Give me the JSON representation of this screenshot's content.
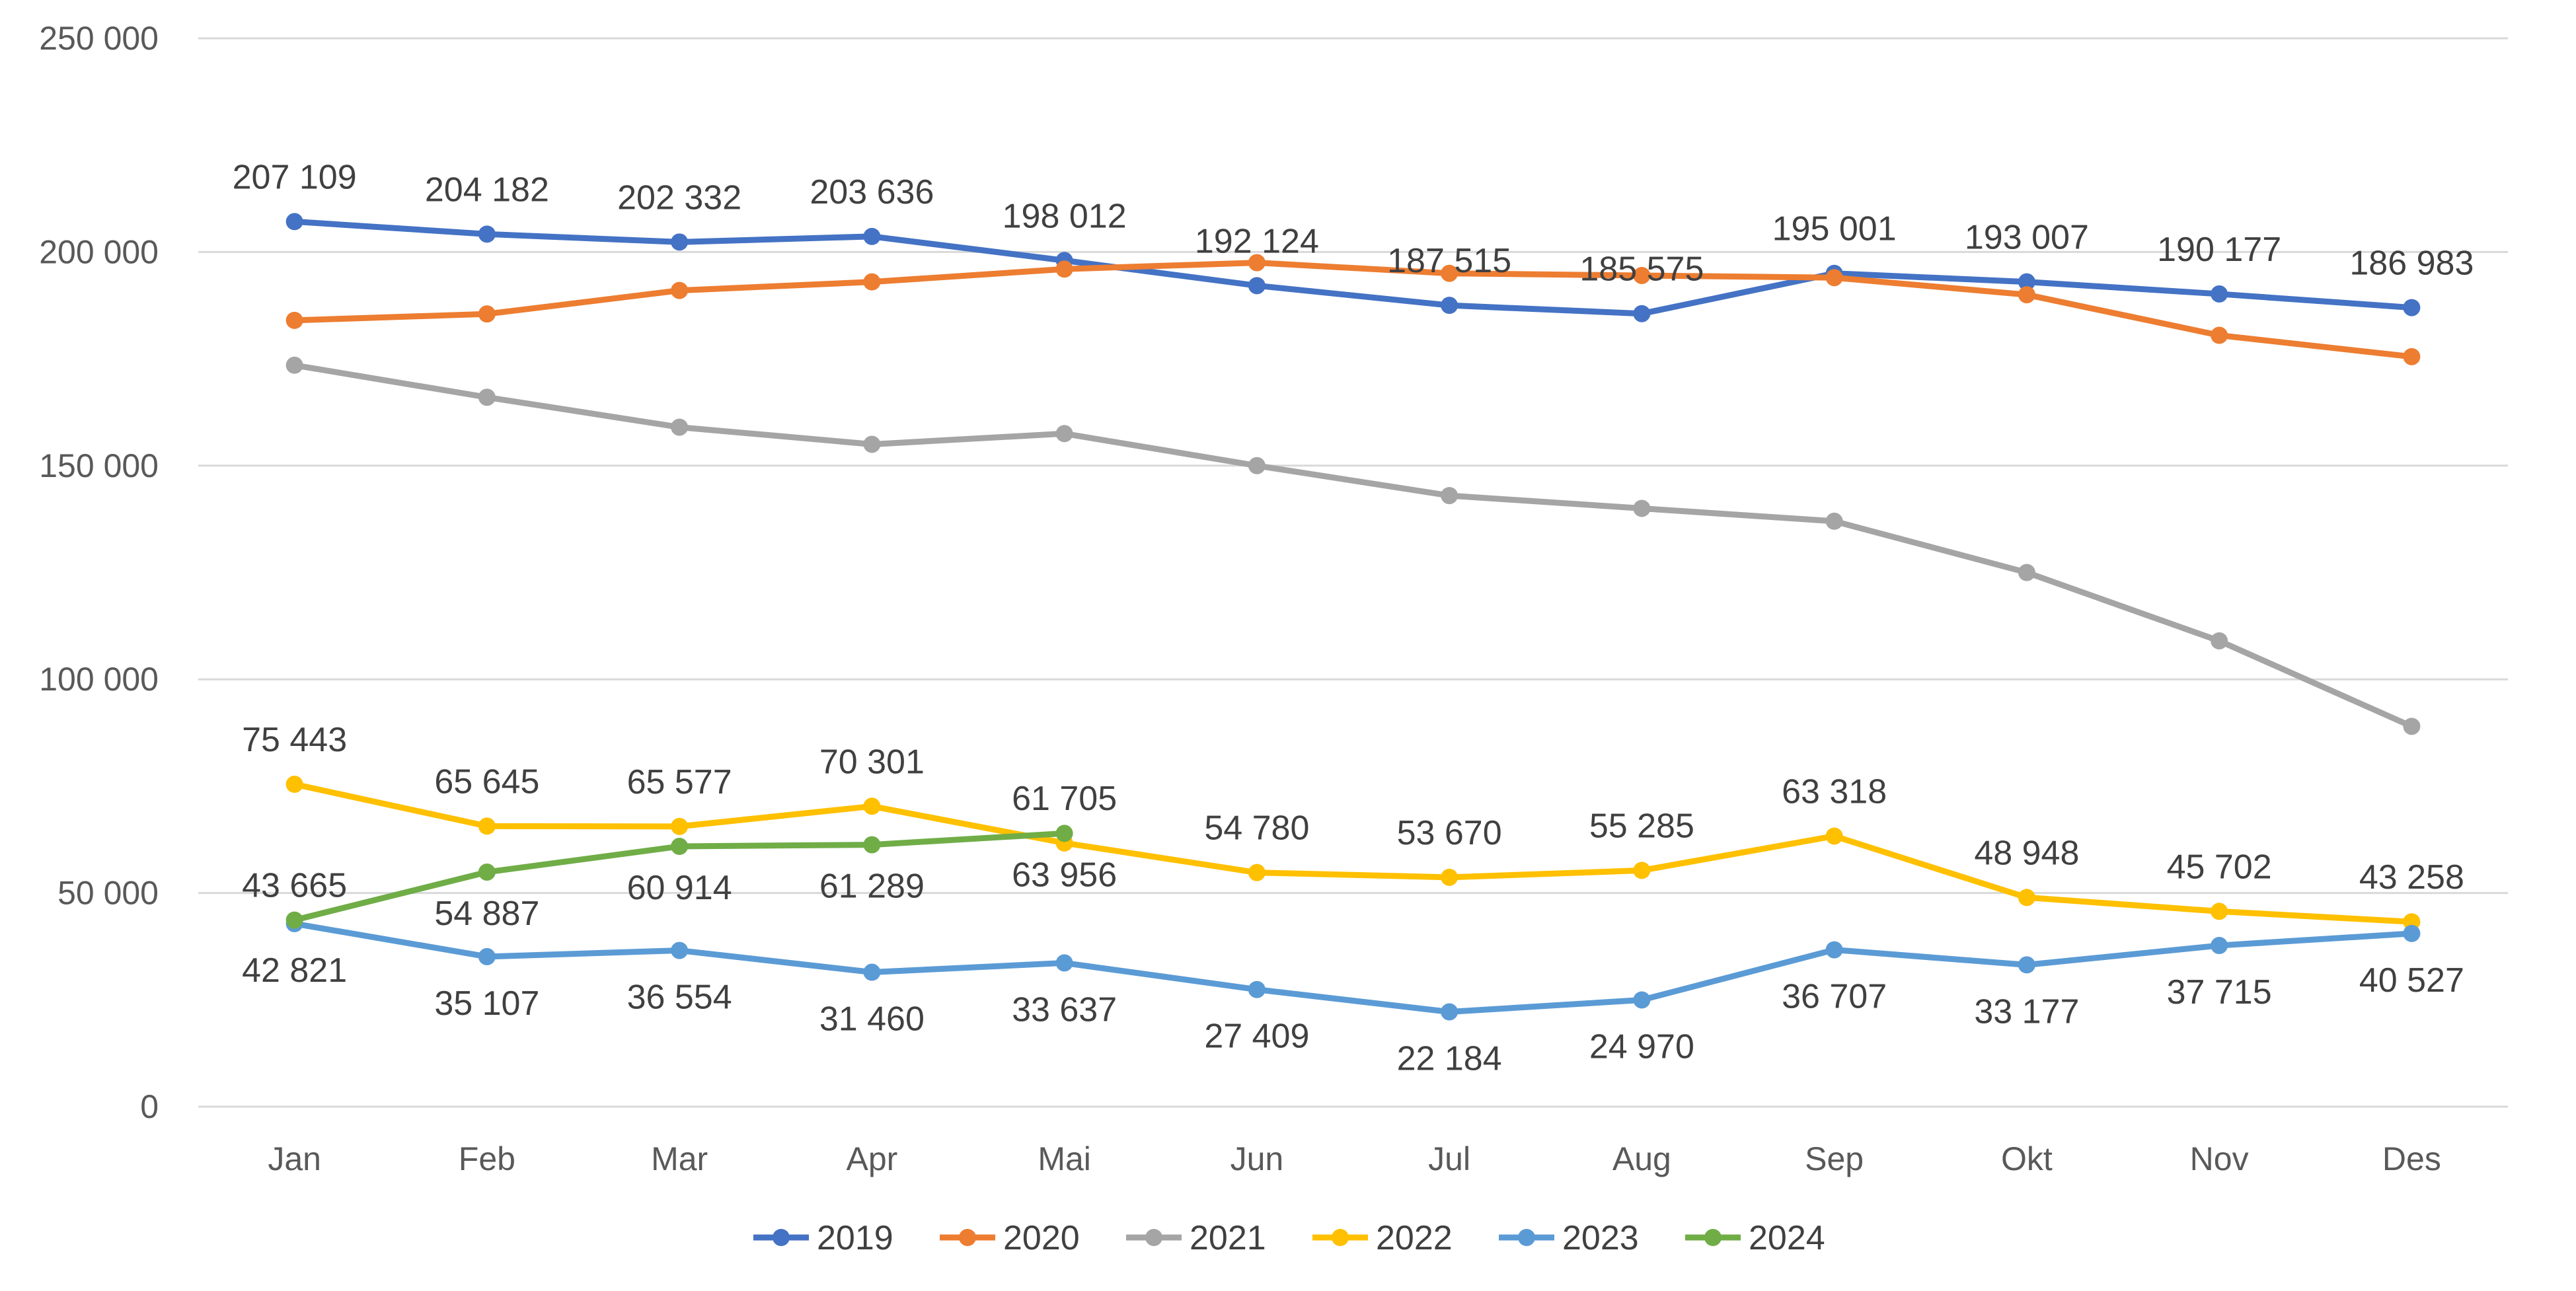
{
  "chart_data": {
    "type": "line",
    "title": "",
    "xlabel": "",
    "ylabel": "",
    "ylim": [
      0,
      250000
    ],
    "yticks": [
      0,
      50000,
      100000,
      150000,
      200000,
      250000
    ],
    "ytick_labels": [
      "0",
      "50 000",
      "100 000",
      "150 000",
      "200 000",
      "250 000"
    ],
    "grid": true,
    "legend_position": "bottom",
    "categories": [
      "Jan",
      "Feb",
      "Mar",
      "Apr",
      "Mai",
      "Jun",
      "Jul",
      "Aug",
      "Sep",
      "Okt",
      "Nov",
      "Des"
    ],
    "series": [
      {
        "name": "2019",
        "color": "#4472C4",
        "values": [
          207109,
          204182,
          202332,
          203636,
          198012,
          192124,
          187515,
          185575,
          195001,
          193007,
          190177,
          186983
        ],
        "labels": [
          "207 109",
          "204 182",
          "202 332",
          "203 636",
          "198 012",
          "192 124",
          "187 515",
          "185 575",
          "195 001",
          "193 007",
          "190 177",
          "186 983"
        ],
        "label_position": "above"
      },
      {
        "name": "2020",
        "color": "#ED7D31",
        "values": [
          184000,
          185500,
          191000,
          193000,
          196000,
          197500,
          195000,
          194500,
          194000,
          190000,
          180500,
          175500
        ],
        "labels": [],
        "label_position": "none"
      },
      {
        "name": "2021",
        "color": "#A5A5A5",
        "values": [
          173500,
          166000,
          159000,
          155000,
          157500,
          150000,
          143000,
          140000,
          137000,
          125000,
          109000,
          89000
        ],
        "labels": [],
        "label_position": "none"
      },
      {
        "name": "2022",
        "color": "#FFC000",
        "values": [
          75443,
          65645,
          65577,
          70301,
          61705,
          54780,
          53670,
          55285,
          63318,
          48948,
          45702,
          43258
        ],
        "labels": [
          "75 443",
          "65 645",
          "65 577",
          "70 301",
          "61 705",
          "54 780",
          "53 670",
          "55 285",
          "63 318",
          "48 948",
          "45 702",
          "43 258"
        ],
        "label_position": "above"
      },
      {
        "name": "2023",
        "color": "#5B9BD5",
        "values": [
          42821,
          35107,
          36554,
          31460,
          33637,
          27409,
          22184,
          24970,
          36707,
          33177,
          37715,
          40527
        ],
        "labels": [
          "42 821",
          "35 107",
          "36 554",
          "31 460",
          "33 637",
          "27 409",
          "22 184",
          "24 970",
          "36 707",
          "33 177",
          "37 715",
          "40 527"
        ],
        "label_position": "below"
      },
      {
        "name": "2024",
        "color": "#70AD47",
        "values": [
          43665,
          54887,
          60914,
          61289,
          63956,
          null,
          null,
          null,
          null,
          null,
          null,
          null
        ],
        "labels": [
          "43 665",
          "54 887",
          "60 914",
          "61 289",
          "63 956"
        ],
        "label_position": "above-first-below-rest"
      }
    ]
  }
}
